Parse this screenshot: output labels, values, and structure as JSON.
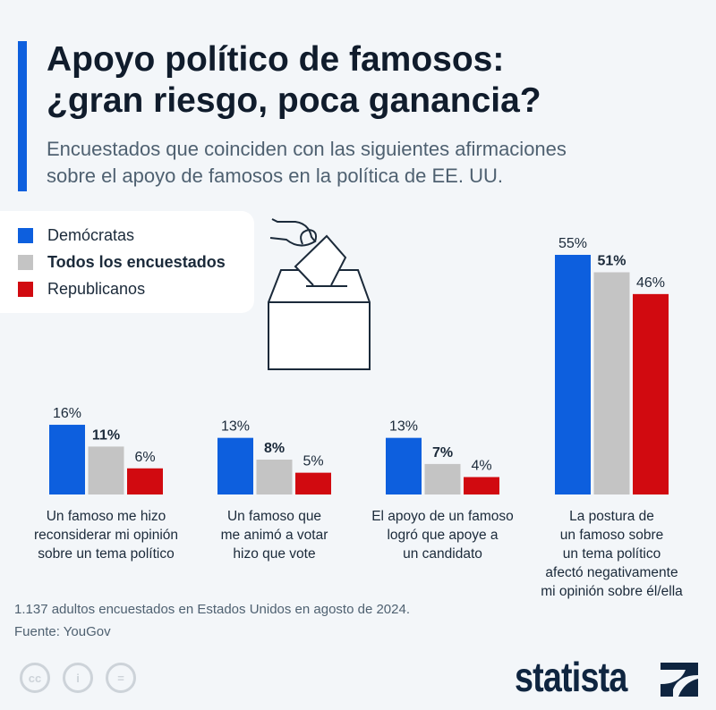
{
  "header": {
    "title_line1": "Apoyo político de famosos:",
    "title_line2": "¿gran riesgo, poca ganancia?",
    "subtitle_line1": "Encuestados que coinciden con las siguientes afirmaciones",
    "subtitle_line2": "sobre el apoyo de famosos en la política de EE. UU."
  },
  "footer": {
    "note": "1.137 adultos encuestados en Estados Unidos en agosto de 2024.",
    "source": "Fuente: YouGov",
    "brand": "statista",
    "license_icons": [
      "cc-icon",
      "attribution-icon",
      "no-derivatives-icon"
    ]
  },
  "chart_data": {
    "type": "bar",
    "title": "",
    "xlabel": "",
    "ylabel": "",
    "ylim": [
      0,
      55
    ],
    "grid": false,
    "legend_position": "top-left",
    "categories": [
      [
        "Un famoso me hizo",
        "reconsiderar mi opinión",
        "sobre un tema político"
      ],
      [
        "Un famoso que",
        "me animó a votar",
        "hizo que vote"
      ],
      [
        "El apoyo de un famoso",
        "logró que apoye a",
        "un candidato"
      ],
      [
        "La postura de",
        "un famoso sobre",
        "un tema político",
        "afectó negativamente",
        "mi opinión sobre él/ella"
      ]
    ],
    "series": [
      {
        "name": "Demócratas",
        "color": "#0d5fde",
        "values": [
          16,
          13,
          13,
          55
        ],
        "bold": false
      },
      {
        "name": "Todos los encuestados",
        "color": "#c4c4c4",
        "values": [
          11,
          8,
          7,
          51
        ],
        "bold": true
      },
      {
        "name": "Republicanos",
        "color": "#d10a10",
        "values": [
          6,
          5,
          4,
          46
        ],
        "bold": false
      }
    ],
    "value_suffix": "%"
  }
}
